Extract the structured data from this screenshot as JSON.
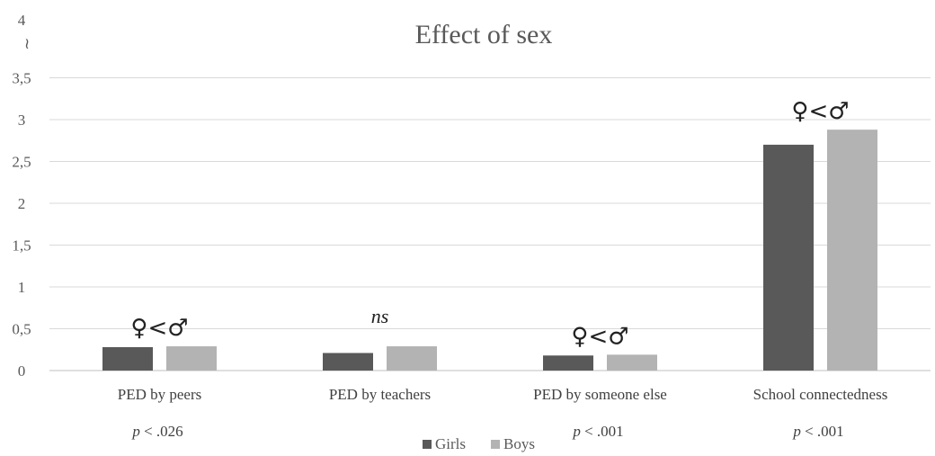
{
  "chart_data": {
    "type": "bar",
    "title": "Effect of sex",
    "categories": [
      "PED by peers",
      "PED by teachers",
      "PED by someone else",
      "School connectedness"
    ],
    "series": [
      {
        "name": "Girls",
        "values": [
          0.28,
          0.21,
          0.18,
          2.7
        ],
        "color": "#595959"
      },
      {
        "name": "Boys",
        "values": [
          0.29,
          0.29,
          0.19,
          2.88
        ],
        "color": "#b3b3b3"
      }
    ],
    "ylim": [
      0,
      4
    ],
    "y_ticks": [
      "0",
      "0,5",
      "1",
      "1,5",
      "2",
      "2,5",
      "3",
      "3,5",
      "4"
    ],
    "axis_break": "≀",
    "grid": true,
    "annotations": [
      "♀<♂",
      "ns",
      "♀<♂",
      "♀<♂"
    ],
    "p_values": [
      "p < .026",
      "",
      "p < .001",
      "p < .001"
    ],
    "legend_position": "bottom"
  }
}
